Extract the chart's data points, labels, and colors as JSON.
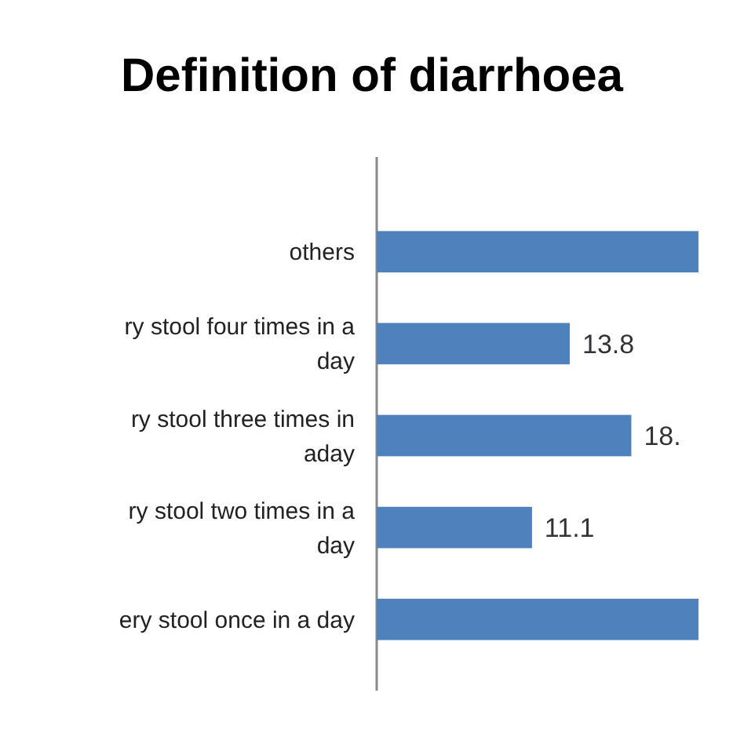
{
  "chart_data": {
    "type": "bar",
    "orientation": "horizontal",
    "title": "Definition of diarrhoea",
    "categories": [
      "others",
      "ry stool four times in a day",
      "ry stool three times in aday",
      "ry stool two times in a day",
      "ery stool once in a day"
    ],
    "values": [
      23,
      13.8,
      18.2,
      11.1,
      23
    ],
    "value_labels": [
      null,
      "13.8",
      "18.",
      "11.1",
      null
    ],
    "color": "#4f81bd"
  }
}
